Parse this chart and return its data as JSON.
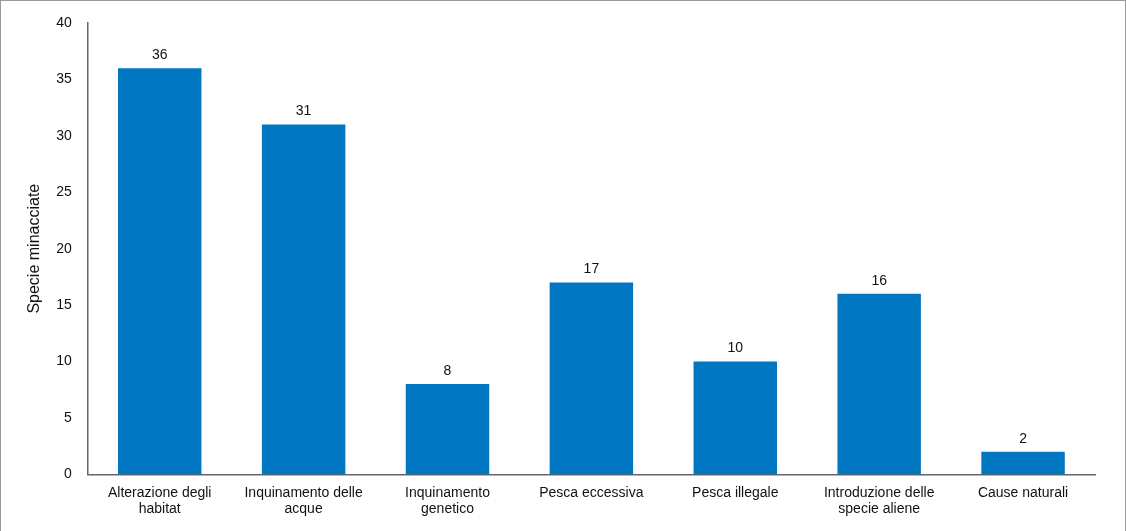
{
  "chart_data": {
    "type": "bar",
    "ylabel": "Specie minacciate",
    "categories": [
      "Alterazione degli habitat",
      "Inquinamento delle acque",
      "Inquinamento genetico",
      "Pesca eccessiva",
      "Pesca illegale",
      "Introduzione delle specie aliene",
      "Cause naturali"
    ],
    "values": [
      36,
      31,
      8,
      17,
      10,
      16,
      2
    ],
    "color": "#0077c0",
    "ylim": [
      0,
      40
    ],
    "yticks": [
      0,
      5,
      10,
      15,
      20,
      25,
      30,
      35,
      40
    ],
    "grid": false,
    "legend": false,
    "data_labels": true
  }
}
